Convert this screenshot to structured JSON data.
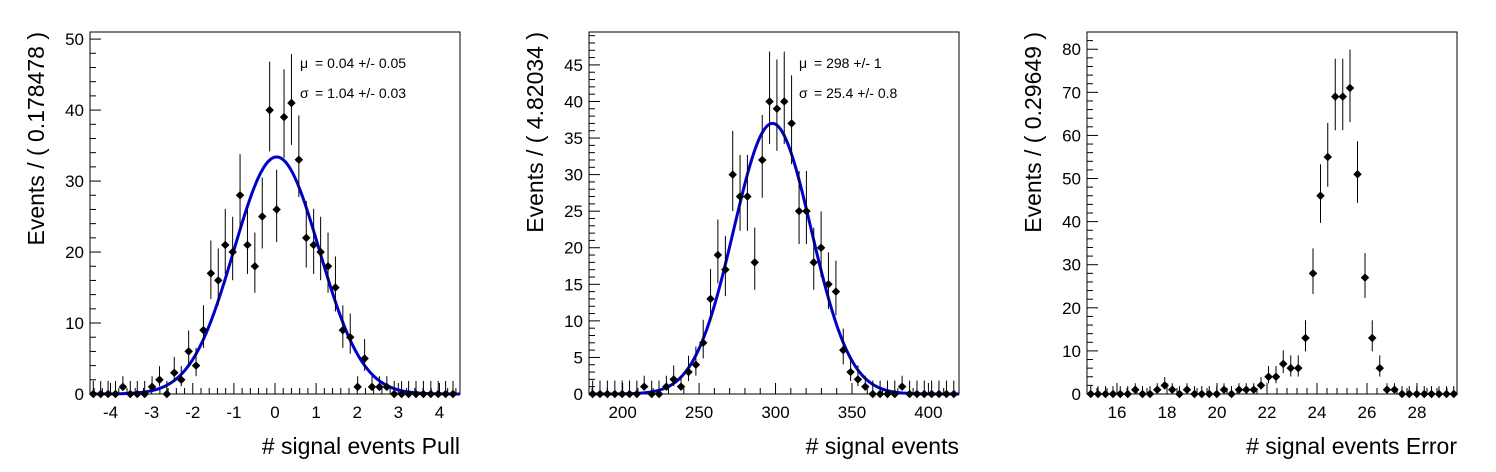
{
  "chart_data": [
    {
      "type": "scatter",
      "xlabel": "# signal events Pull",
      "ylabel": "Events / ( 0.178478 )",
      "xlim": [
        -4.5,
        4.5
      ],
      "ylim": [
        0,
        51
      ],
      "xticks": [
        -4,
        -3,
        -2,
        -1,
        0,
        1,
        2,
        3,
        4
      ],
      "yticks": [
        0,
        10,
        20,
        30,
        40,
        50
      ],
      "annotations": [
        {
          "symbol": "μ",
          "text": "=  0.04 +/- 0.05"
        },
        {
          "symbol": "σ",
          "text": "=  1.04 +/- 0.03"
        }
      ],
      "fit": {
        "type": "gaussian",
        "mean": 0.04,
        "sigma": 1.04,
        "amplitude": 33.4,
        "color": "#0000cc"
      },
      "points": [
        [
          -4.42,
          0
        ],
        [
          -4.24,
          0
        ],
        [
          -4.06,
          0
        ],
        [
          -3.88,
          0
        ],
        [
          -3.7,
          1
        ],
        [
          -3.52,
          0
        ],
        [
          -3.35,
          0
        ],
        [
          -3.17,
          0
        ],
        [
          -2.99,
          1
        ],
        [
          -2.81,
          2
        ],
        [
          -2.63,
          0
        ],
        [
          -2.45,
          3
        ],
        [
          -2.28,
          2
        ],
        [
          -2.1,
          6
        ],
        [
          -1.92,
          4
        ],
        [
          -1.74,
          9
        ],
        [
          -1.56,
          17
        ],
        [
          -1.38,
          16
        ],
        [
          -1.21,
          21
        ],
        [
          -1.03,
          20
        ],
        [
          -0.85,
          28
        ],
        [
          -0.67,
          21
        ],
        [
          -0.49,
          18
        ],
        [
          -0.31,
          25
        ],
        [
          -0.13,
          40
        ],
        [
          0.04,
          26
        ],
        [
          0.22,
          39
        ],
        [
          0.4,
          41
        ],
        [
          0.58,
          33
        ],
        [
          0.76,
          22
        ],
        [
          0.94,
          21
        ],
        [
          1.11,
          20
        ],
        [
          1.29,
          18
        ],
        [
          1.47,
          15
        ],
        [
          1.65,
          9
        ],
        [
          1.83,
          8
        ],
        [
          2.01,
          1
        ],
        [
          2.18,
          5
        ],
        [
          2.36,
          1
        ],
        [
          2.54,
          1
        ],
        [
          2.72,
          1
        ],
        [
          2.9,
          0
        ],
        [
          3.08,
          0
        ],
        [
          3.25,
          0
        ],
        [
          3.43,
          0
        ],
        [
          3.61,
          0
        ],
        [
          3.79,
          0
        ],
        [
          3.97,
          0
        ],
        [
          4.15,
          0
        ],
        [
          4.33,
          0
        ]
      ]
    },
    {
      "type": "scatter",
      "xlabel": "# signal events",
      "ylabel": "Events / ( 4.82034 )",
      "xlim": [
        178,
        420
      ],
      "ylim": [
        0,
        49.5
      ],
      "xticks": [
        200,
        250,
        300,
        350,
        400
      ],
      "yticks": [
        0,
        5,
        10,
        15,
        20,
        25,
        30,
        35,
        40,
        45
      ],
      "annotations": [
        {
          "symbol": "μ",
          "text": "=  298 +/- 1"
        },
        {
          "symbol": "σ",
          "text": "=  25.4 +/- 0.8"
        }
      ],
      "fit": {
        "type": "gaussian",
        "mean": 298,
        "sigma": 25.4,
        "amplitude": 37,
        "color": "#0000cc"
      },
      "points": [
        [
          180.4,
          0
        ],
        [
          185.2,
          0
        ],
        [
          190.0,
          0
        ],
        [
          194.9,
          0
        ],
        [
          199.7,
          0
        ],
        [
          204.5,
          0
        ],
        [
          209.3,
          0
        ],
        [
          214.1,
          1
        ],
        [
          219.0,
          0
        ],
        [
          223.8,
          0
        ],
        [
          228.6,
          1
        ],
        [
          233.4,
          2
        ],
        [
          238.2,
          1
        ],
        [
          243.1,
          3
        ],
        [
          247.9,
          4
        ],
        [
          252.7,
          7
        ],
        [
          257.5,
          13
        ],
        [
          262.3,
          19
        ],
        [
          267.2,
          17
        ],
        [
          272.0,
          30
        ],
        [
          276.8,
          27
        ],
        [
          281.6,
          27
        ],
        [
          286.4,
          18
        ],
        [
          291.3,
          32
        ],
        [
          296.1,
          40
        ],
        [
          300.9,
          39
        ],
        [
          305.7,
          40
        ],
        [
          310.5,
          37
        ],
        [
          315.4,
          25
        ],
        [
          320.2,
          25
        ],
        [
          325.0,
          18
        ],
        [
          329.8,
          20
        ],
        [
          334.6,
          15
        ],
        [
          339.5,
          14
        ],
        [
          344.3,
          6
        ],
        [
          349.1,
          3
        ],
        [
          353.9,
          2
        ],
        [
          358.7,
          1
        ],
        [
          363.6,
          0
        ],
        [
          368.4,
          0
        ],
        [
          373.2,
          0
        ],
        [
          378.0,
          0
        ],
        [
          382.8,
          1
        ],
        [
          387.7,
          0
        ],
        [
          392.5,
          0
        ],
        [
          397.3,
          0
        ],
        [
          402.1,
          0
        ],
        [
          406.9,
          0
        ],
        [
          411.8,
          0
        ],
        [
          416.6,
          0
        ]
      ]
    },
    {
      "type": "scatter",
      "xlabel": "# signal events Error",
      "ylabel": "Events / ( 0.29649 )",
      "xlim": [
        14.8,
        29.6
      ],
      "ylim": [
        0,
        84
      ],
      "xticks": [
        16,
        18,
        20,
        22,
        24,
        26,
        28
      ],
      "yticks": [
        0,
        10,
        20,
        30,
        40,
        50,
        60,
        70,
        80
      ],
      "annotations": [],
      "points": [
        [
          14.95,
          0
        ],
        [
          15.24,
          0
        ],
        [
          15.54,
          0
        ],
        [
          15.84,
          0
        ],
        [
          16.13,
          0
        ],
        [
          16.43,
          0
        ],
        [
          16.73,
          1
        ],
        [
          17.02,
          0
        ],
        [
          17.32,
          0
        ],
        [
          17.61,
          1
        ],
        [
          17.91,
          2
        ],
        [
          18.21,
          1
        ],
        [
          18.5,
          0
        ],
        [
          18.8,
          1
        ],
        [
          19.1,
          0
        ],
        [
          19.39,
          0
        ],
        [
          19.69,
          0
        ],
        [
          19.99,
          0
        ],
        [
          20.28,
          1
        ],
        [
          20.58,
          0
        ],
        [
          20.88,
          1
        ],
        [
          21.17,
          1
        ],
        [
          21.47,
          1
        ],
        [
          21.76,
          2
        ],
        [
          22.06,
          4
        ],
        [
          22.36,
          4
        ],
        [
          22.65,
          7
        ],
        [
          22.95,
          6
        ],
        [
          23.25,
          6
        ],
        [
          23.54,
          13
        ],
        [
          23.84,
          28
        ],
        [
          24.14,
          46
        ],
        [
          24.43,
          55
        ],
        [
          24.73,
          69
        ],
        [
          25.03,
          69
        ],
        [
          25.32,
          71
        ],
        [
          25.62,
          51
        ],
        [
          25.92,
          27
        ],
        [
          26.21,
          13
        ],
        [
          26.51,
          6
        ],
        [
          26.8,
          1
        ],
        [
          27.1,
          1
        ],
        [
          27.4,
          0
        ],
        [
          27.69,
          0
        ],
        [
          27.99,
          0
        ],
        [
          28.29,
          0
        ],
        [
          28.58,
          0
        ],
        [
          28.88,
          0
        ],
        [
          29.18,
          0
        ],
        [
          29.47,
          0
        ]
      ]
    }
  ]
}
